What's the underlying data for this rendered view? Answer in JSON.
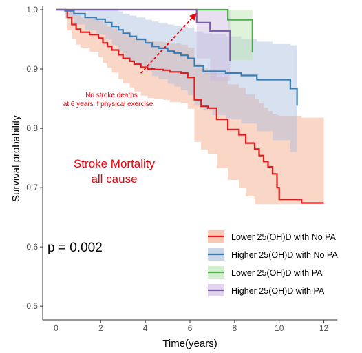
{
  "chart_data": {
    "type": "line",
    "subtype": "kaplan-meier-survival",
    "xlabel": "Time(years)",
    "ylabel": "Survival probability",
    "xlim": [
      -0.6,
      12.6
    ],
    "ylim": [
      0.47,
      1.0
    ],
    "xticks": [
      "0",
      "2",
      "4",
      "6",
      "8",
      "10",
      "12"
    ],
    "yticks": [
      "0.5",
      "0.6",
      "0.7",
      "0.8",
      "0.9",
      "1.0"
    ],
    "grid": false,
    "legend_position": "bottom-right",
    "pvalue_text": "p = 0.002",
    "annotations": {
      "main_title": [
        "Stroke Mortality",
        "all cause"
      ],
      "arrow_note": [
        "No stroke deaths",
        "at 6 years if physical exercise"
      ],
      "arrow_from": [
        3.8,
        0.893
      ],
      "arrow_to": [
        6.3,
        1.0
      ]
    },
    "series": [
      {
        "name": "Lower 25(OH)D with No PA",
        "color": "#e41a1c",
        "band_color": "#f4a582",
        "x": [
          0,
          0.5,
          0.7,
          0.9,
          1.1,
          1.5,
          1.9,
          2.1,
          2.3,
          2.5,
          2.8,
          3.0,
          3.3,
          3.5,
          3.8,
          4.1,
          4.4,
          4.8,
          5.1,
          5.6,
          5.9,
          6.2,
          6.5,
          6.8,
          7.2,
          7.7,
          8.2,
          8.5,
          8.9,
          9.1,
          9.3,
          9.5,
          9.7,
          9.9,
          10.0,
          11.0,
          12.0
        ],
        "y": [
          1.0,
          0.987,
          0.975,
          0.967,
          0.962,
          0.958,
          0.952,
          0.944,
          0.938,
          0.932,
          0.924,
          0.918,
          0.913,
          0.908,
          0.903,
          0.9,
          0.899,
          0.898,
          0.895,
          0.893,
          0.886,
          0.848,
          0.837,
          0.834,
          0.815,
          0.798,
          0.789,
          0.775,
          0.765,
          0.754,
          0.744,
          0.735,
          0.723,
          0.7,
          0.68,
          0.674,
          0.674
        ],
        "band_upper": [
          1.0,
          1.0,
          0.996,
          0.991,
          0.987,
          0.985,
          0.982,
          0.976,
          0.972,
          0.968,
          0.963,
          0.958,
          0.955,
          0.952,
          0.949,
          0.947,
          0.946,
          0.945,
          0.943,
          0.941,
          0.936,
          0.909,
          0.901,
          0.899,
          0.887,
          0.874,
          0.868,
          0.857,
          0.849,
          0.842,
          0.835,
          0.829,
          0.824,
          0.822,
          0.821,
          0.818,
          0.814
        ],
        "band_lower": [
          1.0,
          0.965,
          0.951,
          0.941,
          0.936,
          0.929,
          0.92,
          0.91,
          0.902,
          0.894,
          0.883,
          0.876,
          0.869,
          0.862,
          0.855,
          0.851,
          0.849,
          0.848,
          0.844,
          0.842,
          0.833,
          0.777,
          0.764,
          0.757,
          0.733,
          0.713,
          0.7,
          0.685,
          0.672,
          0.672,
          0.672,
          0.672,
          0.672,
          0.672,
          0.672,
          0.672,
          0.672
        ]
      },
      {
        "name": "Higher 25(OH)D with No PA",
        "color": "#377eb8",
        "band_color": "#a6bddb",
        "x": [
          0,
          0.4,
          0.8,
          1.3,
          1.8,
          2.2,
          2.5,
          2.8,
          3.0,
          3.3,
          3.6,
          4.0,
          4.3,
          4.6,
          5.0,
          5.3,
          5.6,
          5.9,
          6.2,
          6.6,
          7.0,
          7.6,
          8.3,
          9.0,
          9.7,
          10.5,
          10.8
        ],
        "y": [
          1.0,
          0.998,
          0.993,
          0.987,
          0.984,
          0.978,
          0.972,
          0.966,
          0.96,
          0.955,
          0.95,
          0.944,
          0.938,
          0.935,
          0.93,
          0.927,
          0.923,
          0.918,
          0.905,
          0.896,
          0.896,
          0.893,
          0.889,
          0.882,
          0.882,
          0.867,
          0.838
        ],
        "band_upper": [
          1.0,
          1.0,
          1.0,
          1.0,
          1.0,
          1.0,
          1.0,
          0.997,
          0.993,
          0.99,
          0.987,
          0.983,
          0.98,
          0.978,
          0.975,
          0.973,
          0.971,
          0.97,
          0.963,
          0.96,
          0.958,
          0.955,
          0.951,
          0.946,
          0.942,
          0.94,
          0.94
        ],
        "band_lower": [
          1.0,
          0.985,
          0.975,
          0.965,
          0.958,
          0.95,
          0.94,
          0.93,
          0.92,
          0.912,
          0.905,
          0.897,
          0.888,
          0.883,
          0.875,
          0.87,
          0.864,
          0.856,
          0.84,
          0.83,
          0.822,
          0.815,
          0.808,
          0.795,
          0.78,
          0.76,
          0.738
        ]
      },
      {
        "name": "Lower 25(OH)D with PA",
        "color": "#4daf4a",
        "band_color": "#b8e5b0",
        "x": [
          0,
          6.3,
          7.7,
          8.8
        ],
        "y": [
          1.0,
          1.0,
          0.983,
          0.928
        ],
        "band_upper": [
          1.0,
          1.0,
          1.0,
          1.0
        ],
        "band_lower": [
          1.0,
          1.0,
          0.915,
          0.915
        ]
      },
      {
        "name": "Higher 25(OH)D with PA",
        "color": "#7b5fa8",
        "band_color": "#cdb8e0",
        "x": [
          0,
          6.3,
          6.9,
          7.8
        ],
        "y": [
          1.0,
          0.978,
          0.964,
          0.913
        ],
        "band_upper": [
          1.0,
          1.0,
          1.0,
          1.0
        ],
        "band_lower": [
          1.0,
          0.918,
          0.88,
          0.88
        ]
      }
    ]
  }
}
